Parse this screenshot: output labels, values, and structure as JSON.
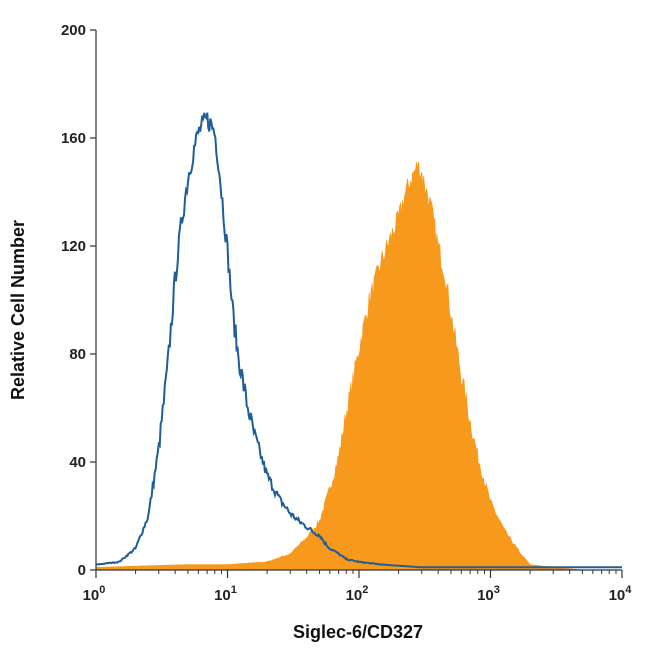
{
  "chart_data": {
    "type": "area",
    "xlabel": "Siglec-6/CD327",
    "ylabel": "Relative Cell Number",
    "xscale": "log",
    "xlim": [
      1,
      10000
    ],
    "ylim": [
      0,
      200
    ],
    "grid": false,
    "y_ticks": [
      0,
      40,
      80,
      120,
      160,
      200
    ],
    "x_ticks": [
      {
        "value": 1,
        "base": "10",
        "exp": "0"
      },
      {
        "value": 10,
        "base": "10",
        "exp": "1"
      },
      {
        "value": 100,
        "base": "10",
        "exp": "2"
      },
      {
        "value": 1000,
        "base": "10",
        "exp": "3"
      },
      {
        "value": 10000,
        "base": "10",
        "exp": "4"
      }
    ],
    "series": [
      {
        "style": "filled",
        "color": "#F7991C",
        "x": [
          1,
          5,
          10,
          20,
          30,
          40,
          50,
          60,
          70,
          80,
          90,
          100,
          120,
          150,
          180,
          200,
          220,
          250,
          280,
          300,
          350,
          400,
          450,
          500,
          600,
          700,
          800,
          1000,
          1300,
          1700,
          2000,
          3000,
          5000,
          10000
        ],
        "y": [
          1,
          2,
          2,
          3,
          6,
          12,
          18,
          30,
          42,
          58,
          70,
          82,
          100,
          115,
          125,
          130,
          138,
          145,
          150,
          147,
          135,
          120,
          110,
          95,
          72,
          55,
          42,
          25,
          14,
          6,
          2,
          1,
          0,
          0
        ]
      },
      {
        "style": "outline",
        "color": "#1F5E96",
        "x": [
          1,
          1.5,
          2,
          2.5,
          3,
          3.5,
          4,
          4.5,
          5,
          5.5,
          6,
          6.5,
          7,
          7.5,
          8,
          8.5,
          9,
          10,
          11,
          12,
          14,
          16,
          18,
          20,
          25,
          30,
          35,
          40,
          45,
          50,
          55,
          60,
          70,
          80,
          100,
          150,
          300,
          1000,
          10000
        ],
        "y": [
          2,
          3,
          8,
          20,
          45,
          75,
          108,
          130,
          145,
          155,
          162,
          165,
          167,
          165,
          162,
          152,
          140,
          118,
          95,
          80,
          62,
          50,
          42,
          35,
          26,
          21,
          18,
          16,
          14,
          13,
          10,
          8,
          6,
          4,
          3,
          2,
          1,
          1,
          1
        ]
      }
    ]
  }
}
